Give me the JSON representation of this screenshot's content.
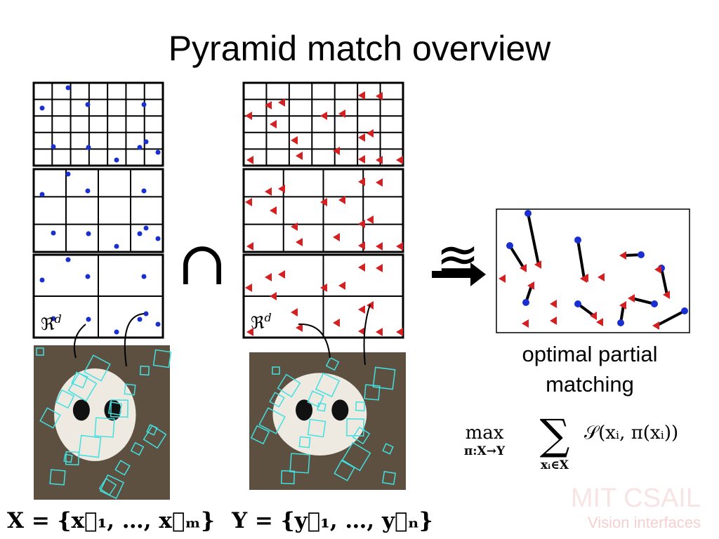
{
  "slide": {
    "title": "Pyramid match overview",
    "left_label": {
      "base": "ℜ",
      "sup": "d"
    },
    "right_label": {
      "base": "ℜ",
      "sup": "d"
    },
    "operator": "∩",
    "approx_symbol": "≊",
    "caption": [
      "optimal partial",
      "matching"
    ],
    "formula": {
      "max": "max",
      "max_sub": "π:X→Y",
      "sum": "∑",
      "sum_sub": "xᵢ∈X",
      "body": "𝒮(xᵢ, π(xᵢ))"
    },
    "set_x": "X = {x⃗₁, …, x⃗ₘ}",
    "set_y": "Y = {y⃗₁, …, y⃗ₙ}",
    "watermark": [
      "MIT CSAIL",
      "Vision interfaces"
    ]
  }
}
